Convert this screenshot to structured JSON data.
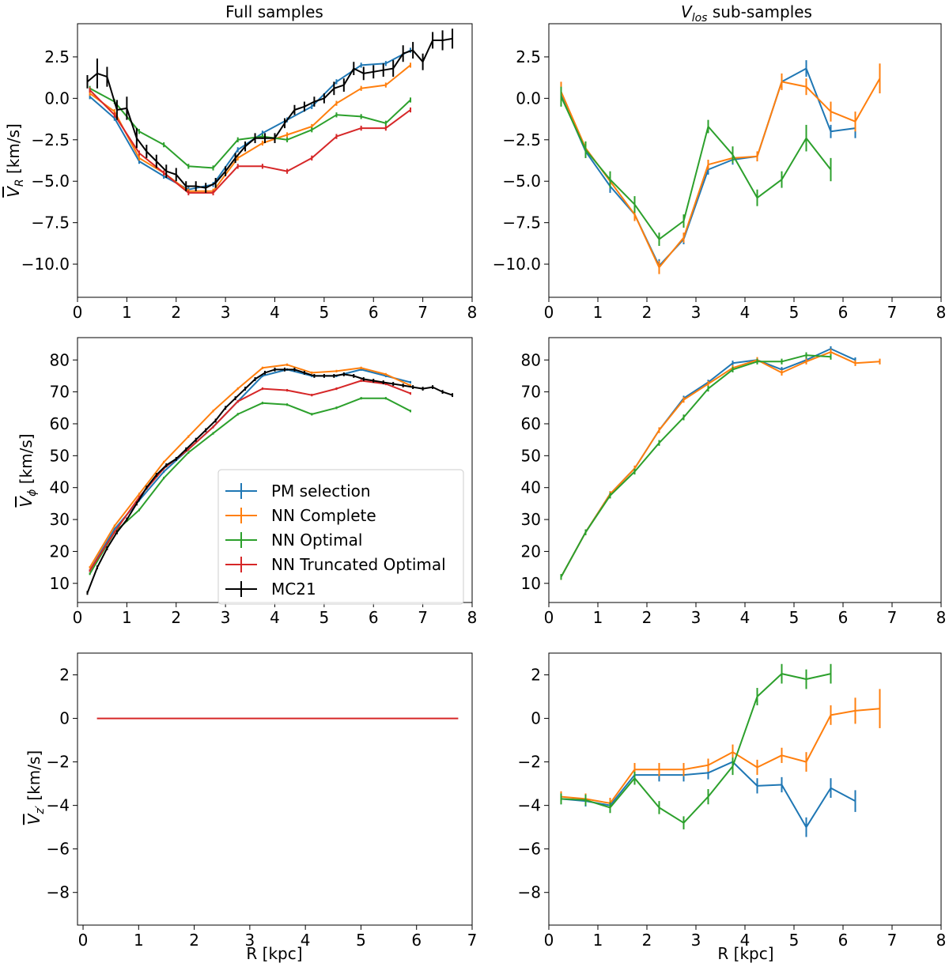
{
  "colors": {
    "pm": "#1f77b4",
    "complete": "#ff7f0e",
    "optimal": "#2ca02c",
    "trunc": "#d62728",
    "mc21": "#000000"
  },
  "labels": {
    "col_left_title": "Full samples",
    "col_right_title_main": "V",
    "col_right_title_sub": "los",
    "col_right_title_rest": " sub-samples",
    "ylabel_r_sym": "V",
    "ylabel_r_sub": "R",
    "ylabel_phi_sym": "V",
    "ylabel_phi_sub": "ϕ",
    "ylabel_z_sym": "V",
    "ylabel_z_sub": "z′",
    "ylabel_unit": " [km/s]",
    "xlabel": "R [kpc]"
  },
  "legend": [
    {
      "key": "pm",
      "label": "PM selection"
    },
    {
      "key": "complete",
      "label": "NN Complete"
    },
    {
      "key": "optimal",
      "label": "NN Optimal"
    },
    {
      "key": "trunc",
      "label": "NN Truncated Optimal"
    },
    {
      "key": "mc21",
      "label": "MC21"
    }
  ],
  "chart_data": [
    {
      "id": "vr_full",
      "type": "line",
      "title": "Full samples",
      "ylabel": "V_R [km/s]",
      "xlim": [
        0,
        8
      ],
      "ylim": [
        -12,
        4.5
      ],
      "xticks": [
        0,
        1,
        2,
        3,
        4,
        5,
        6,
        7,
        8
      ],
      "yticks": [
        -10.0,
        -7.5,
        -5.0,
        -2.5,
        0.0,
        2.5
      ],
      "series": [
        {
          "key": "pm",
          "name": "PM selection",
          "x": [
            0.25,
            0.75,
            1.25,
            1.75,
            2.25,
            2.75,
            3.25,
            3.75,
            4.25,
            4.75,
            5.25,
            5.75,
            6.25,
            6.75
          ],
          "y": [
            0.1,
            -1.2,
            -3.8,
            -4.7,
            -5.5,
            -5.2,
            -3.1,
            -2.1,
            -1.3,
            -0.5,
            1.0,
            2.0,
            2.1,
            2.9
          ],
          "err": 0.15
        },
        {
          "key": "complete",
          "name": "NN Complete",
          "x": [
            0.25,
            0.75,
            1.25,
            1.75,
            2.25,
            2.75,
            3.25,
            3.75,
            4.25,
            4.75,
            5.25,
            5.75,
            6.25,
            6.75
          ],
          "y": [
            0.3,
            -0.8,
            -3.6,
            -4.5,
            -5.6,
            -5.6,
            -3.6,
            -2.7,
            -2.2,
            -1.7,
            -0.3,
            0.6,
            0.8,
            2.0
          ],
          "err": 0.15
        },
        {
          "key": "optimal",
          "name": "NN Optimal",
          "x": [
            0.25,
            0.75,
            1.25,
            1.75,
            2.25,
            2.75,
            3.25,
            3.75,
            4.25,
            4.75,
            5.25,
            5.75,
            6.25,
            6.75
          ],
          "y": [
            0.6,
            -0.2,
            -2.0,
            -2.8,
            -4.1,
            -4.2,
            -2.5,
            -2.3,
            -2.5,
            -1.9,
            -1.0,
            -1.1,
            -1.5,
            -0.1
          ],
          "err": 0.15
        },
        {
          "key": "trunc",
          "name": "NN Truncated Optimal",
          "x": [
            0.25,
            0.75,
            1.25,
            1.75,
            2.25,
            2.75,
            3.25,
            3.75,
            4.25,
            4.75,
            5.25,
            5.75,
            6.25,
            6.75
          ],
          "y": [
            0.5,
            -1.0,
            -3.3,
            -4.5,
            -5.7,
            -5.7,
            -4.1,
            -4.1,
            -4.4,
            -3.6,
            -2.3,
            -1.8,
            -1.8,
            -0.7
          ],
          "err": 0.15
        },
        {
          "key": "mc21",
          "name": "MC21",
          "x": [
            0.2,
            0.4,
            0.6,
            0.8,
            1.0,
            1.2,
            1.4,
            1.6,
            1.8,
            2.0,
            2.2,
            2.4,
            2.6,
            2.8,
            3.0,
            3.2,
            3.4,
            3.6,
            3.8,
            4.0,
            4.2,
            4.4,
            4.6,
            4.8,
            5.0,
            5.2,
            5.4,
            5.6,
            5.8,
            6.0,
            6.2,
            6.4,
            6.6,
            6.8,
            7.0,
            7.2,
            7.4,
            7.6
          ],
          "y": [
            1.0,
            1.5,
            1.3,
            -0.7,
            -0.6,
            -2.4,
            -3.2,
            -3.8,
            -4.4,
            -4.6,
            -5.3,
            -5.3,
            -5.4,
            -5.1,
            -4.4,
            -3.6,
            -2.9,
            -2.4,
            -2.4,
            -2.4,
            -1.5,
            -0.7,
            -0.5,
            -0.2,
            0.0,
            0.6,
            0.8,
            1.8,
            1.5,
            1.6,
            1.7,
            1.8,
            2.7,
            2.9,
            2.2,
            3.5,
            3.5,
            3.6
          ],
          "err_list": [
            0.4,
            0.9,
            0.6,
            0.6,
            0.7,
            0.6,
            0.4,
            0.4,
            0.4,
            0.4,
            0.3,
            0.3,
            0.3,
            0.3,
            0.3,
            0.3,
            0.3,
            0.3,
            0.3,
            0.3,
            0.3,
            0.3,
            0.3,
            0.3,
            0.3,
            0.4,
            0.4,
            0.4,
            0.4,
            0.4,
            0.4,
            0.5,
            0.5,
            0.5,
            0.5,
            0.5,
            0.6,
            0.6
          ]
        }
      ]
    },
    {
      "id": "vr_sub",
      "type": "line",
      "title": "V_los sub-samples",
      "ylabel": "",
      "xlim": [
        0,
        8
      ],
      "ylim": [
        -12,
        4.5
      ],
      "xticks": [
        0,
        1,
        2,
        3,
        4,
        5,
        6,
        7,
        8
      ],
      "yticks": [
        -10.0,
        -7.5,
        -5.0,
        -2.5,
        0.0,
        2.5
      ],
      "series": [
        {
          "key": "pm",
          "name": "PM selection",
          "x": [
            0.25,
            0.75,
            1.25,
            1.75,
            2.25,
            2.75,
            3.25,
            3.75,
            4.25,
            4.75,
            5.25,
            5.75,
            6.25
          ],
          "y": [
            0.2,
            -3.2,
            -5.3,
            -7.0,
            -10.1,
            -8.5,
            -4.3,
            -3.7,
            -3.5,
            1.0,
            1.8,
            -2.0,
            -1.8
          ],
          "err_list": [
            0.5,
            0.4,
            0.4,
            0.4,
            0.4,
            0.3,
            0.3,
            0.3,
            0.3,
            0.4,
            0.5,
            0.4,
            0.6
          ]
        },
        {
          "key": "complete",
          "name": "NN Complete",
          "x": [
            0.25,
            0.75,
            1.25,
            1.75,
            2.25,
            2.75,
            3.25,
            3.75,
            4.25,
            4.75,
            5.25,
            5.75,
            6.25,
            6.75
          ],
          "y": [
            0.4,
            -3.0,
            -5.0,
            -7.0,
            -10.2,
            -8.4,
            -4.0,
            -3.6,
            -3.5,
            1.0,
            0.7,
            -0.8,
            -1.4,
            1.2
          ],
          "err_list": [
            0.6,
            0.4,
            0.4,
            0.4,
            0.4,
            0.3,
            0.3,
            0.3,
            0.3,
            0.5,
            0.5,
            0.6,
            0.6,
            0.9
          ]
        },
        {
          "key": "optimal",
          "name": "NN Optimal",
          "x": [
            0.25,
            0.75,
            1.25,
            1.75,
            2.25,
            2.75,
            3.25,
            3.75,
            4.25,
            4.75,
            5.25,
            5.75
          ],
          "y": [
            0.1,
            -3.1,
            -4.9,
            -6.4,
            -8.5,
            -7.4,
            -1.7,
            -3.4,
            -6.0,
            -4.9,
            -2.4,
            -4.3
          ],
          "err_list": [
            0.6,
            0.5,
            0.5,
            0.5,
            0.4,
            0.4,
            0.4,
            0.5,
            0.5,
            0.5,
            0.8,
            0.7
          ]
        }
      ]
    },
    {
      "id": "vphi_full",
      "type": "line",
      "title": "",
      "ylabel": "V_phi [km/s]",
      "xlim": [
        0,
        8
      ],
      "ylim": [
        4,
        87
      ],
      "xticks": [
        0,
        1,
        2,
        3,
        4,
        5,
        6,
        7,
        8
      ],
      "yticks": [
        10,
        20,
        30,
        40,
        50,
        60,
        70,
        80
      ],
      "series": [
        {
          "key": "pm",
          "name": "PM selection",
          "x": [
            0.25,
            0.75,
            1.25,
            1.75,
            2.25,
            2.75,
            3.25,
            3.75,
            4.25,
            4.75,
            5.25,
            5.75,
            6.25,
            6.75
          ],
          "y": [
            14,
            27,
            36,
            45,
            52,
            59,
            67,
            75,
            77,
            75,
            75,
            77,
            75,
            73
          ],
          "err": 0.4
        },
        {
          "key": "complete",
          "name": "NN Complete",
          "x": [
            0.25,
            0.75,
            1.25,
            1.75,
            2.25,
            2.75,
            3.25,
            3.75,
            4.25,
            4.75,
            5.25,
            5.75,
            6.25,
            6.75
          ],
          "y": [
            15,
            28,
            38,
            48,
            56,
            64,
            71,
            77.5,
            78.5,
            76,
            76.5,
            77.5,
            75.5,
            72
          ],
          "err": 0.4
        },
        {
          "key": "optimal",
          "name": "NN Optimal",
          "x": [
            0.25,
            0.75,
            1.25,
            1.75,
            2.25,
            2.75,
            3.25,
            3.75,
            4.25,
            4.75,
            5.25,
            5.75,
            6.25,
            6.75
          ],
          "y": [
            13,
            26,
            33,
            43,
            51,
            57,
            63,
            66.5,
            66,
            63,
            65,
            68,
            68,
            64
          ],
          "err": 0.4
        },
        {
          "key": "trunc",
          "name": "NN Truncated Optimal",
          "x": [
            0.25,
            0.75,
            1.25,
            1.75,
            2.25,
            2.75,
            3.25,
            3.75,
            4.25,
            4.75,
            5.25,
            5.75,
            6.25,
            6.75
          ],
          "y": [
            14,
            26,
            37,
            46,
            52,
            59,
            67,
            71,
            70.5,
            69,
            71,
            73.5,
            72.5,
            69.5
          ],
          "err": 0.4
        },
        {
          "key": "mc21",
          "name": "MC21",
          "x": [
            0.2,
            0.4,
            0.6,
            0.8,
            1.0,
            1.2,
            1.4,
            1.6,
            1.8,
            2.0,
            2.2,
            2.4,
            2.6,
            2.8,
            3.0,
            3.2,
            3.4,
            3.6,
            3.8,
            4.0,
            4.2,
            4.4,
            4.6,
            4.8,
            5.0,
            5.2,
            5.4,
            5.6,
            5.8,
            6.0,
            6.2,
            6.4,
            6.6,
            6.8,
            7.0,
            7.2,
            7.4,
            7.6
          ],
          "y": [
            7,
            15,
            21,
            26,
            30,
            35,
            40,
            44,
            47,
            49,
            52,
            55,
            58,
            61,
            65,
            68,
            71,
            74,
            76,
            77,
            77,
            77,
            76,
            75,
            75,
            75,
            75.5,
            75,
            74,
            73.5,
            73,
            72.5,
            72,
            71.5,
            71,
            71.5,
            70,
            69
          ],
          "err": 0.6
        }
      ]
    },
    {
      "id": "vphi_sub",
      "type": "line",
      "title": "",
      "ylabel": "",
      "xlim": [
        0,
        8
      ],
      "ylim": [
        4,
        87
      ],
      "xticks": [
        0,
        1,
        2,
        3,
        4,
        5,
        6,
        7,
        8
      ],
      "yticks": [
        10,
        20,
        30,
        40,
        50,
        60,
        70,
        80
      ],
      "series": [
        {
          "key": "pm",
          "name": "PM selection",
          "x": [
            0.25,
            0.75,
            1.25,
            1.75,
            2.25,
            2.75,
            3.25,
            3.75,
            4.25,
            4.75,
            5.25,
            5.75,
            6.25
          ],
          "y": [
            12,
            26,
            38,
            46,
            58,
            68,
            73,
            79,
            80,
            77,
            80,
            83.5,
            80
          ],
          "err": 0.8
        },
        {
          "key": "complete",
          "name": "NN Complete",
          "x": [
            0.25,
            0.75,
            1.25,
            1.75,
            2.25,
            2.75,
            3.25,
            3.75,
            4.25,
            4.75,
            5.25,
            5.75,
            6.25,
            6.75
          ],
          "y": [
            12,
            26,
            38,
            46,
            58,
            67.5,
            72.5,
            77.5,
            80,
            76,
            79.5,
            82.5,
            79,
            79.5
          ],
          "err": 0.9
        },
        {
          "key": "optimal",
          "name": "NN Optimal",
          "x": [
            0.25,
            0.75,
            1.25,
            1.75,
            2.25,
            2.75,
            3.25,
            3.75,
            4.25,
            4.75,
            5.25,
            5.75
          ],
          "y": [
            12,
            26,
            37.5,
            45,
            54,
            62,
            71,
            77,
            79.5,
            79.5,
            81.5,
            81
          ],
          "err": 0.9
        }
      ]
    },
    {
      "id": "vz_full",
      "type": "line",
      "title": "",
      "ylabel": "V_z' [km/s]",
      "xlabel": "R [kpc]",
      "xlim": [
        -0.1,
        7
      ],
      "ylim": [
        -9.5,
        3
      ],
      "xticks": [
        0,
        1,
        2,
        3,
        4,
        5,
        6,
        7
      ],
      "yticks": [
        -8,
        -6,
        -4,
        -2,
        0,
        2
      ],
      "series": [
        {
          "key": "trunc",
          "name": "NN Truncated Optimal",
          "x": [
            0.25,
            6.75
          ],
          "y": [
            0,
            0
          ],
          "err": 0
        }
      ]
    },
    {
      "id": "vz_sub",
      "type": "line",
      "title": "",
      "ylabel": "",
      "xlabel": "R [kpc]",
      "xlim": [
        0,
        8
      ],
      "ylim": [
        -9.5,
        3
      ],
      "xticks": [
        0,
        1,
        2,
        3,
        4,
        5,
        6,
        7,
        8
      ],
      "yticks": [
        -8,
        -6,
        -4,
        -2,
        0,
        2
      ],
      "series": [
        {
          "key": "pm",
          "name": "PM selection",
          "x": [
            0.25,
            0.75,
            1.25,
            1.75,
            2.25,
            2.75,
            3.25,
            3.75,
            4.25,
            4.75,
            5.25,
            5.75,
            6.25
          ],
          "y": [
            -3.7,
            -3.8,
            -4.0,
            -2.6,
            -2.6,
            -2.6,
            -2.5,
            -2.0,
            -3.1,
            -3.05,
            -5.0,
            -3.2,
            -3.8
          ],
          "err_list": [
            0.25,
            0.25,
            0.25,
            0.3,
            0.3,
            0.3,
            0.3,
            0.35,
            0.35,
            0.35,
            0.45,
            0.45,
            0.5
          ]
        },
        {
          "key": "complete",
          "name": "NN Complete",
          "x": [
            0.25,
            0.75,
            1.25,
            1.75,
            2.25,
            2.75,
            3.25,
            3.75,
            4.25,
            4.75,
            5.25,
            5.75,
            6.25,
            6.75
          ],
          "y": [
            -3.6,
            -3.7,
            -3.9,
            -2.35,
            -2.35,
            -2.35,
            -2.15,
            -1.55,
            -2.25,
            -1.7,
            -2.0,
            0.15,
            0.35,
            0.45
          ],
          "err_list": [
            0.25,
            0.25,
            0.25,
            0.3,
            0.3,
            0.3,
            0.3,
            0.35,
            0.35,
            0.35,
            0.45,
            0.45,
            0.6,
            0.9
          ]
        },
        {
          "key": "optimal",
          "name": "NN Optimal",
          "x": [
            0.25,
            0.75,
            1.25,
            1.75,
            2.25,
            2.75,
            3.25,
            3.75,
            4.25,
            4.75,
            5.25,
            5.75
          ],
          "y": [
            -3.7,
            -3.75,
            -4.1,
            -2.75,
            -4.1,
            -4.8,
            -3.6,
            -2.2,
            1.0,
            2.05,
            1.8,
            2.05
          ],
          "err_list": [
            0.25,
            0.25,
            0.25,
            0.3,
            0.3,
            0.3,
            0.35,
            0.4,
            0.4,
            0.45,
            0.45,
            0.45
          ]
        }
      ]
    }
  ]
}
